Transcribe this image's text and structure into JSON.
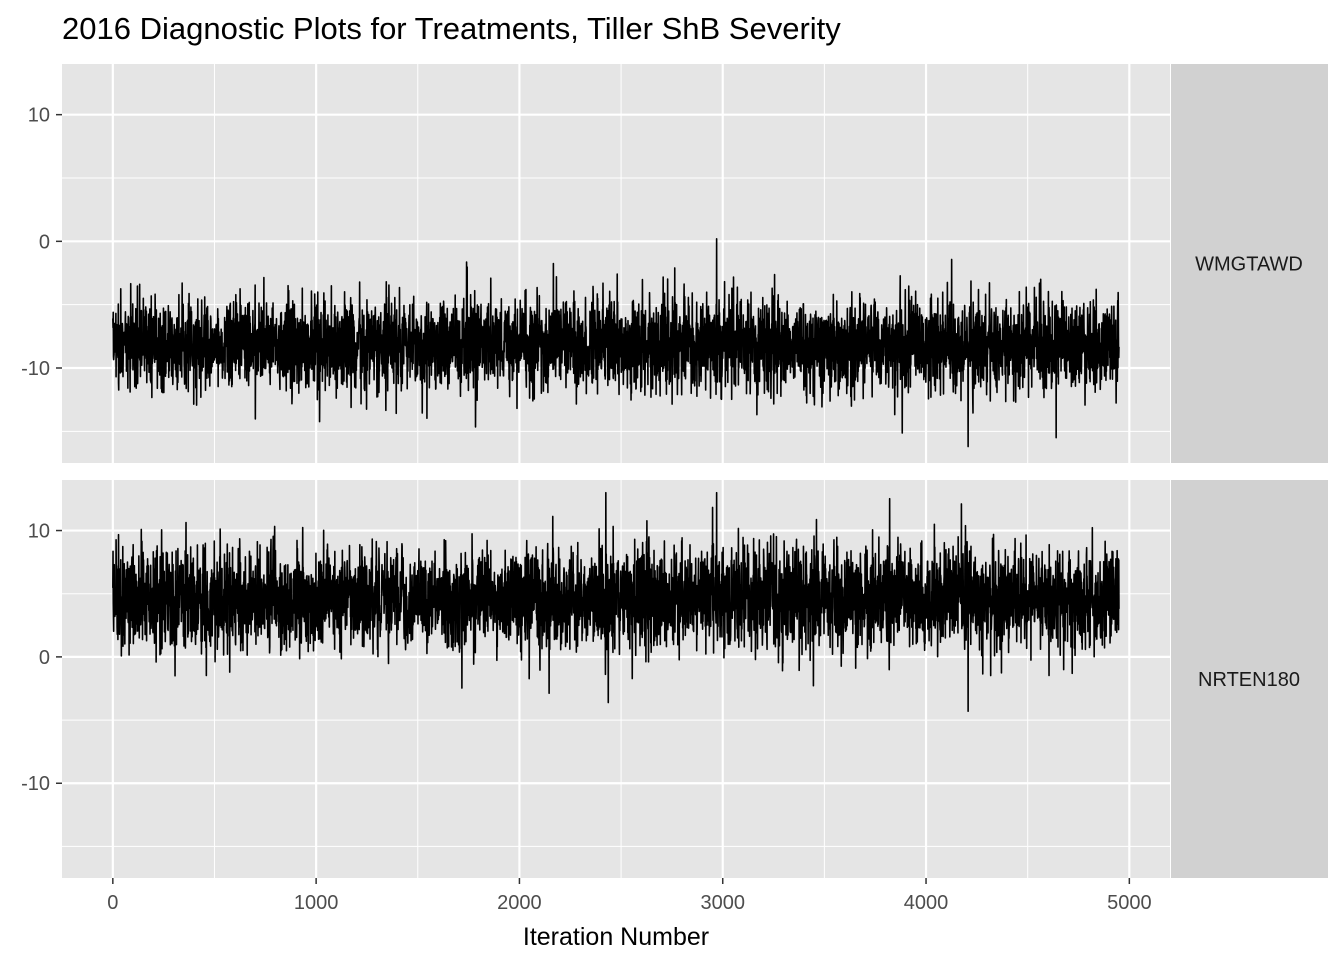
{
  "chart_data": {
    "type": "line",
    "title": "2016 Diagnostic Plots for Treatments, Tiller ShB Severity",
    "xlabel": "Iteration Number",
    "ylabel": "",
    "xlim": [
      -250,
      5200
    ],
    "ylim": [
      -17.5,
      14
    ],
    "x_ticks": [
      0,
      1000,
      2000,
      3000,
      4000,
      5000
    ],
    "x_tick_labels": [
      "0",
      "1000",
      "2000",
      "3000",
      "4000",
      "5000"
    ],
    "y_ticks": [
      -10,
      0,
      10
    ],
    "y_tick_labels": [
      "-10",
      "0",
      "10"
    ],
    "grid": true,
    "line_color": "#000000",
    "panel_background": "#e5e5e5",
    "strip_background": "#d1d1d1",
    "n_iterations": 4950,
    "panels": [
      {
        "label": "WMGTAWD",
        "center": -8.2,
        "noise_sd": 1.75,
        "max": 0.2,
        "min": -16.2,
        "seed": 20160
      },
      {
        "label": "NRTEN180",
        "center": 4.6,
        "noise_sd": 1.95,
        "max": 13.0,
        "min": -4.3,
        "seed": 20161
      }
    ]
  }
}
